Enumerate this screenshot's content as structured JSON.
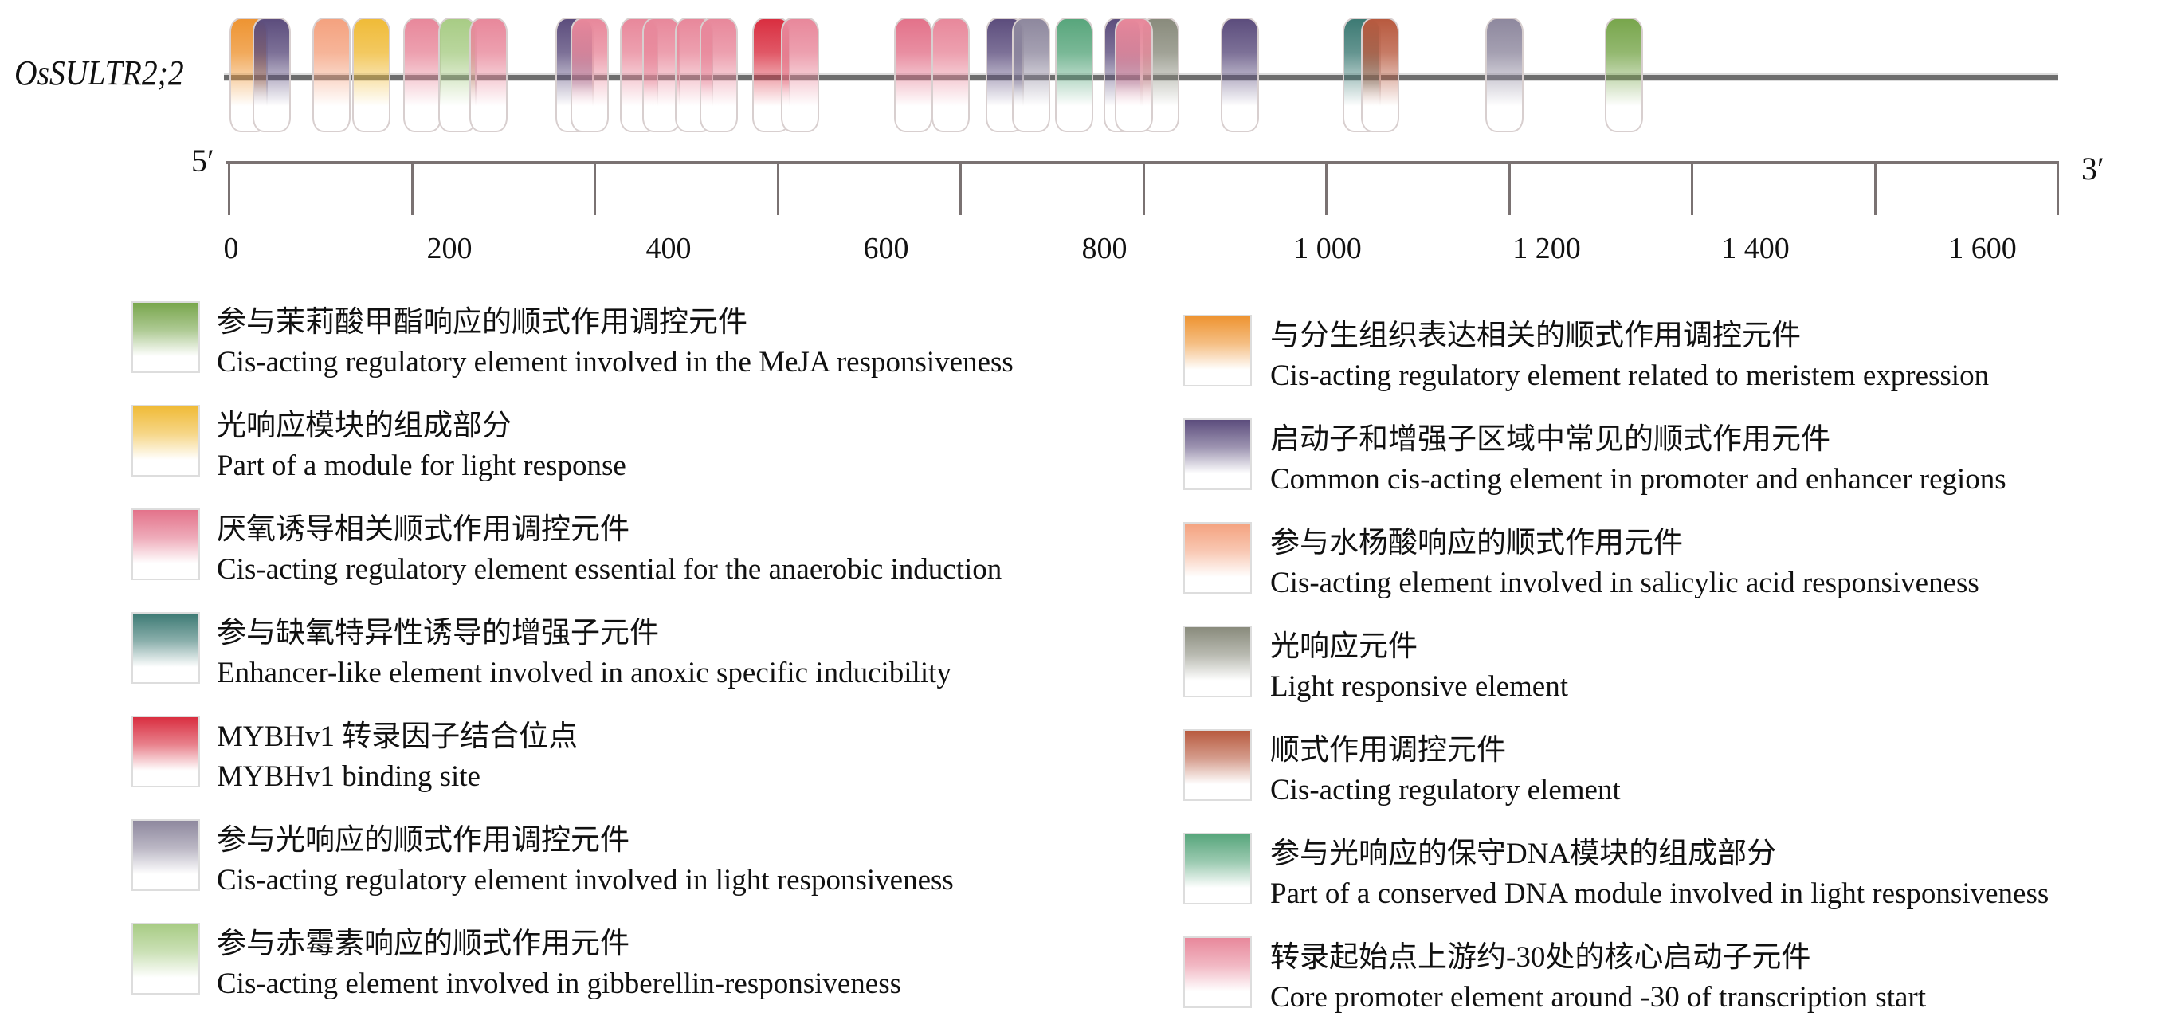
{
  "chart_data": {
    "type": "diagram",
    "gene": "OsSULTR2;2",
    "five_prime": "5′",
    "three_prime": "3′",
    "axis_range": [
      0,
      1700
    ],
    "tick_labels": [
      "0",
      "200",
      "400",
      "600",
      "800",
      "1 000",
      "1 200",
      "1 400",
      "1 600"
    ],
    "categories": {
      "meja": {
        "zh": "参与茉莉酸甲酯响应的顺式作用调控元件",
        "en": "Cis-acting regulatory element involved in the MeJA responsiveness",
        "color": "#78a64c"
      },
      "lightmodule": {
        "zh": "光响应模块的组成部分",
        "en": "Part of a module for light response",
        "color": "#f0bb38"
      },
      "anaerobic": {
        "zh": "厌氧诱导相关顺式作用调控元件",
        "en": "Cis-acting regulatory element essential for the anaerobic induction",
        "color": "#e3728a"
      },
      "anoxic": {
        "zh": "参与缺氧特异性诱导的增强子元件",
        "en": "Enhancer-like element involved in anoxic specific inducibility",
        "color": "#3d7a74"
      },
      "mybhv1": {
        "zh": "MYBHv1  转录因子结合位点",
        "en": "MYBHv1 binding site",
        "color": "#d92e40"
      },
      "lightreg": {
        "zh": "参与光响应的顺式作用调控元件",
        "en": "Cis-acting regulatory element involved in light responsiveness",
        "color": "#8e889e"
      },
      "ga": {
        "zh": "参与赤霉素响应的顺式作用元件",
        "en": "Cis-acting element involved in gibberellin-responsiveness",
        "color": "#a8cc85"
      },
      "meristem": {
        "zh": "与分生组织表达相关的顺式作用调控元件",
        "en": "Cis-acting regulatory element related to meristem expression",
        "color": "#ee9432"
      },
      "common": {
        "zh": "启动子和增强子区域中常见的顺式作用元件",
        "en": "Common cis-acting element in promoter and enhancer regions",
        "color": "#5c4d7d"
      },
      "sa": {
        "zh": "参与水杨酸响应的顺式作用元件",
        "en": "Cis-acting element involved in salicylic acid responsiveness",
        "color": "#f4a27f"
      },
      "lightresp": {
        "zh": "光响应元件",
        "en": "Light responsive element",
        "color": "#898b7c"
      },
      "cisreg": {
        "zh": "顺式作用调控元件",
        "en": "Cis-acting regulatory element",
        "color": "#b85a3f"
      },
      "conserved": {
        "zh": "参与光响应的保守DNA模块的组成部分",
        "en": "Part of a conserved DNA module involved in light responsiveness",
        "color": "#58a67c"
      },
      "core": {
        "zh": "转录起始点上游约-30处的核心启动子元件",
        "en": "Core promoter element around -30 of transcription start",
        "color": "#e8889b"
      }
    },
    "legend_left": [
      "meja",
      "lightmodule",
      "anaerobic",
      "anoxic",
      "mybhv1",
      "lightreg",
      "ga"
    ],
    "legend_right": [
      "meristem",
      "common",
      "sa",
      "lightresp",
      "cisreg",
      "conserved",
      "core"
    ],
    "elements": [
      {
        "bp": 19,
        "cat": "meristem"
      },
      {
        "bp": 41,
        "cat": "common"
      },
      {
        "bp": 96,
        "cat": "sa"
      },
      {
        "bp": 133,
        "cat": "lightmodule"
      },
      {
        "bp": 181,
        "cat": "core"
      },
      {
        "bp": 213,
        "cat": "ga"
      },
      {
        "bp": 242,
        "cat": "core"
      },
      {
        "bp": 322,
        "cat": "common"
      },
      {
        "bp": 336,
        "cat": "core"
      },
      {
        "bp": 382,
        "cat": "core"
      },
      {
        "bp": 403,
        "cat": "core"
      },
      {
        "bp": 433,
        "cat": "core"
      },
      {
        "bp": 456,
        "cat": "core"
      },
      {
        "bp": 505,
        "cat": "mybhv1"
      },
      {
        "bp": 532,
        "cat": "core"
      },
      {
        "bp": 637,
        "cat": "anaerobic"
      },
      {
        "bp": 672,
        "cat": "core"
      },
      {
        "bp": 722,
        "cat": "common"
      },
      {
        "bp": 747,
        "cat": "lightreg"
      },
      {
        "bp": 787,
        "cat": "conserved"
      },
      {
        "bp": 832,
        "cat": "common"
      },
      {
        "bp": 867,
        "cat": "lightresp"
      },
      {
        "bp": 842,
        "cat": "core"
      },
      {
        "bp": 941,
        "cat": "common"
      },
      {
        "bp": 1054,
        "cat": "anoxic"
      },
      {
        "bp": 1071,
        "cat": "cisreg"
      },
      {
        "bp": 1187,
        "cat": "lightreg"
      },
      {
        "bp": 1298,
        "cat": "meja"
      }
    ]
  }
}
